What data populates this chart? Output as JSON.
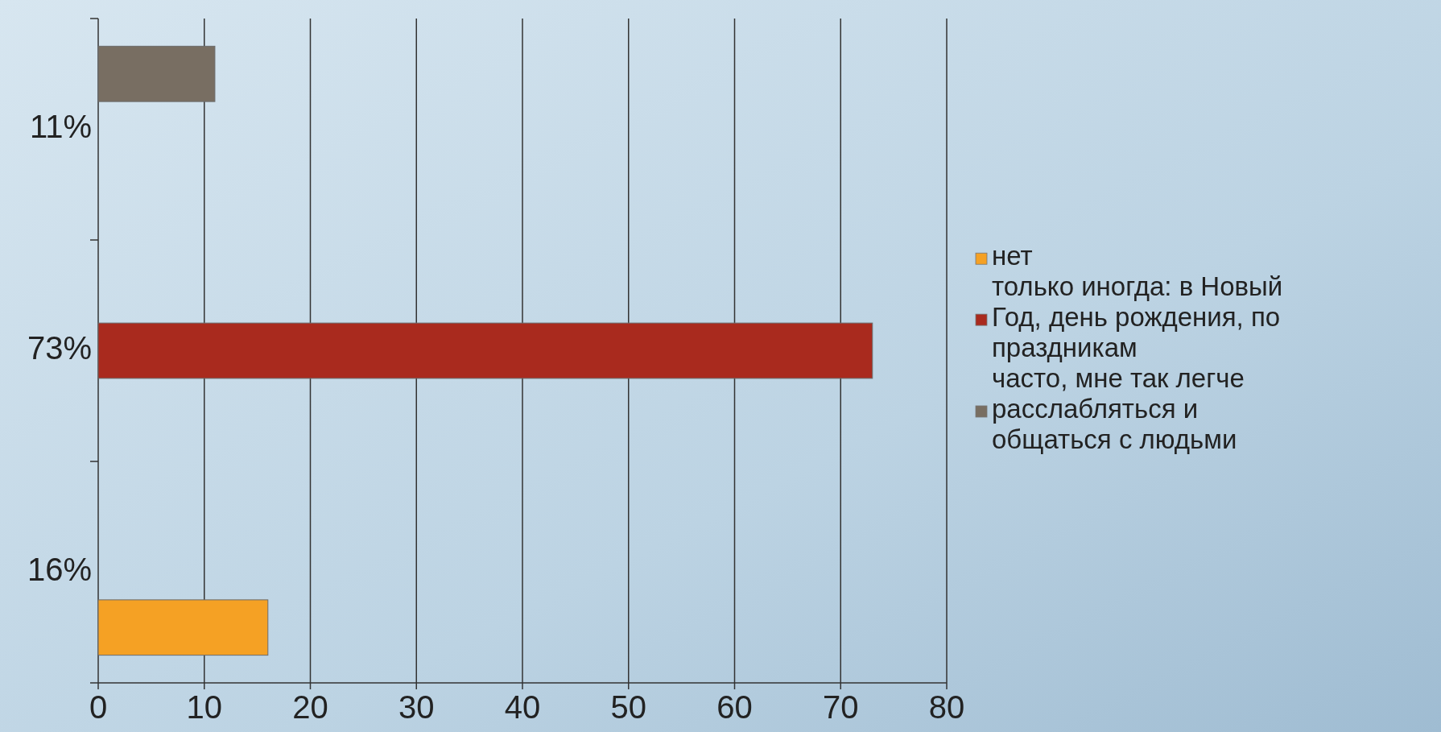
{
  "chart_data": {
    "type": "bar",
    "orientation": "horizontal",
    "categories": [
      "11%",
      "73%",
      "16%"
    ],
    "series": [
      {
        "name": "нет",
        "color": "#f5a124",
        "values": [
          null,
          null,
          16
        ]
      },
      {
        "name": "только иногда: в Новый Год, день рождения, по праздникам",
        "color": "#a92a1e",
        "values": [
          null,
          73,
          null
        ]
      },
      {
        "name": "часто, мне так легче расслабляться и общаться с людьми",
        "color": "#786e62",
        "values": [
          11,
          null,
          null
        ]
      }
    ],
    "xlim": [
      0,
      80
    ],
    "xticks": [
      0,
      10,
      20,
      30,
      40,
      50,
      60,
      70,
      80
    ],
    "grid": "x",
    "legend": "right"
  }
}
